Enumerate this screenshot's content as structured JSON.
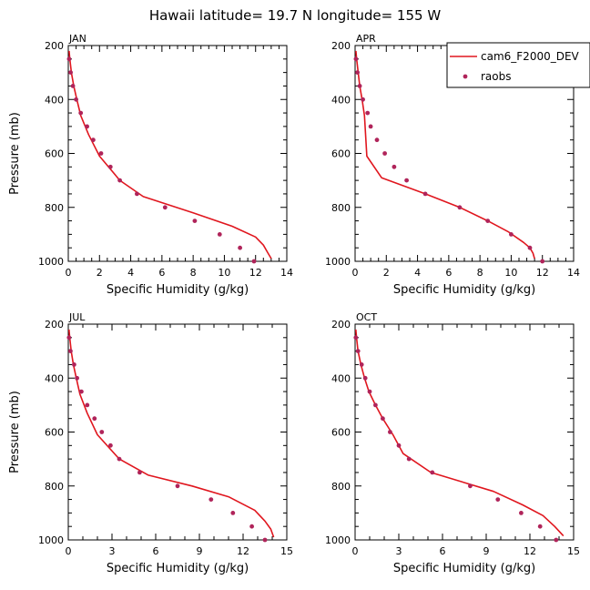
{
  "title": "Hawaii   latitude= 19.7 N longitude= 155 W",
  "colors": {
    "model": "#e0161e",
    "obs": "#b0245a",
    "axis": "#000000"
  },
  "legend": {
    "model_label": "cam6_F2000_DEV",
    "obs_label": "raobs"
  },
  "chart_data": [
    {
      "type": "line",
      "panel": "JAN",
      "xlabel": "Specific Humidity (g/kg)",
      "ylabel": "Pressure (mb)",
      "xlim": [
        0,
        14
      ],
      "ylim": [
        200,
        1000
      ],
      "xticks": [
        "0",
        "2",
        "4",
        "6",
        "8",
        "10",
        "12",
        "14"
      ],
      "yticks": [
        "200",
        "400",
        "600",
        "800",
        "1000"
      ],
      "series": [
        {
          "name": "cam6_F2000_DEV",
          "x": [
            0.05,
            0.1,
            0.2,
            0.35,
            0.55,
            0.8,
            1.3,
            2.0,
            3.3,
            4.8,
            8.0,
            10.5,
            12.0,
            12.5,
            12.8,
            13.0
          ],
          "y": [
            220,
            250,
            300,
            350,
            400,
            460,
            530,
            610,
            700,
            760,
            820,
            870,
            910,
            940,
            970,
            990
          ]
        },
        {
          "name": "raobs",
          "x": [
            0.05,
            0.15,
            0.3,
            0.5,
            0.8,
            1.2,
            1.6,
            2.1,
            2.7,
            3.3,
            4.4,
            6.2,
            8.1,
            9.7,
            11.0,
            11.9
          ],
          "y": [
            250,
            300,
            350,
            400,
            450,
            500,
            550,
            600,
            650,
            700,
            750,
            800,
            850,
            900,
            950,
            1000
          ]
        }
      ]
    },
    {
      "type": "line",
      "panel": "APR",
      "xlabel": "Specific Humidity (g/kg)",
      "ylabel": "",
      "xlim": [
        0,
        14
      ],
      "ylim": [
        200,
        1000
      ],
      "xticks": [
        "0",
        "2",
        "4",
        "6",
        "8",
        "10",
        "12",
        "14"
      ],
      "yticks": [
        "200",
        "400",
        "600",
        "800",
        "1000"
      ],
      "series": [
        {
          "name": "cam6_F2000_DEV",
          "x": [
            0.05,
            0.1,
            0.2,
            0.3,
            0.45,
            0.6,
            0.75,
            1.7,
            4.5,
            6.7,
            8.5,
            9.8,
            10.8,
            11.2,
            11.4,
            11.5
          ],
          "y": [
            220,
            250,
            300,
            350,
            400,
            460,
            610,
            690,
            750,
            800,
            850,
            890,
            930,
            950,
            970,
            990
          ]
        },
        {
          "name": "raobs",
          "x": [
            0.05,
            0.15,
            0.3,
            0.5,
            0.8,
            1.0,
            1.4,
            1.9,
            2.5,
            3.3,
            4.5,
            6.7,
            8.5,
            10.0,
            11.2,
            12.0
          ],
          "y": [
            250,
            300,
            350,
            400,
            450,
            500,
            550,
            600,
            650,
            700,
            750,
            800,
            850,
            900,
            950,
            1000
          ]
        }
      ]
    },
    {
      "type": "line",
      "panel": "JUL",
      "xlabel": "Specific Humidity (g/kg)",
      "ylabel": "Pressure (mb)",
      "xlim": [
        0,
        15
      ],
      "ylim": [
        200,
        1000
      ],
      "xticks": [
        "0",
        "3",
        "6",
        "9",
        "12",
        "15"
      ],
      "yticks": [
        "200",
        "400",
        "600",
        "800",
        "1000"
      ],
      "series": [
        {
          "name": "cam6_F2000_DEV",
          "x": [
            0.05,
            0.1,
            0.2,
            0.35,
            0.55,
            0.8,
            1.3,
            2.0,
            3.5,
            5.5,
            8.5,
            11.0,
            12.8,
            13.5,
            13.9,
            14.1
          ],
          "y": [
            220,
            250,
            300,
            350,
            400,
            460,
            530,
            610,
            700,
            760,
            800,
            840,
            890,
            930,
            960,
            990
          ]
        },
        {
          "name": "raobs",
          "x": [
            0.05,
            0.15,
            0.4,
            0.6,
            0.9,
            1.3,
            1.8,
            2.3,
            2.9,
            3.5,
            4.9,
            7.5,
            9.8,
            11.3,
            12.6,
            13.5
          ],
          "y": [
            250,
            300,
            350,
            400,
            450,
            500,
            550,
            600,
            650,
            700,
            750,
            800,
            850,
            900,
            950,
            1000
          ]
        }
      ]
    },
    {
      "type": "line",
      "panel": "OCT",
      "xlabel": "Specific Humidity (g/kg)",
      "ylabel": "",
      "xlim": [
        0,
        15
      ],
      "ylim": [
        200,
        1000
      ],
      "xticks": [
        "0",
        "3",
        "6",
        "9",
        "12",
        "15"
      ],
      "yticks": [
        "200",
        "400",
        "600",
        "800",
        "1000"
      ],
      "series": [
        {
          "name": "cam6_F2000_DEV",
          "x": [
            0.05,
            0.1,
            0.2,
            0.4,
            0.65,
            0.95,
            1.4,
            1.9,
            2.6,
            3.3,
            5.2,
            9.5,
            11.5,
            12.9,
            13.7,
            14.3
          ],
          "y": [
            220,
            250,
            300,
            350,
            400,
            450,
            500,
            550,
            610,
            680,
            750,
            820,
            870,
            910,
            950,
            985
          ]
        },
        {
          "name": "raobs",
          "x": [
            0.05,
            0.2,
            0.45,
            0.7,
            1.0,
            1.4,
            1.9,
            2.4,
            3.0,
            3.7,
            5.3,
            7.9,
            9.8,
            11.4,
            12.7,
            13.8
          ],
          "y": [
            250,
            300,
            350,
            400,
            450,
            500,
            550,
            600,
            650,
            700,
            750,
            800,
            850,
            900,
            950,
            1000
          ]
        }
      ]
    }
  ]
}
